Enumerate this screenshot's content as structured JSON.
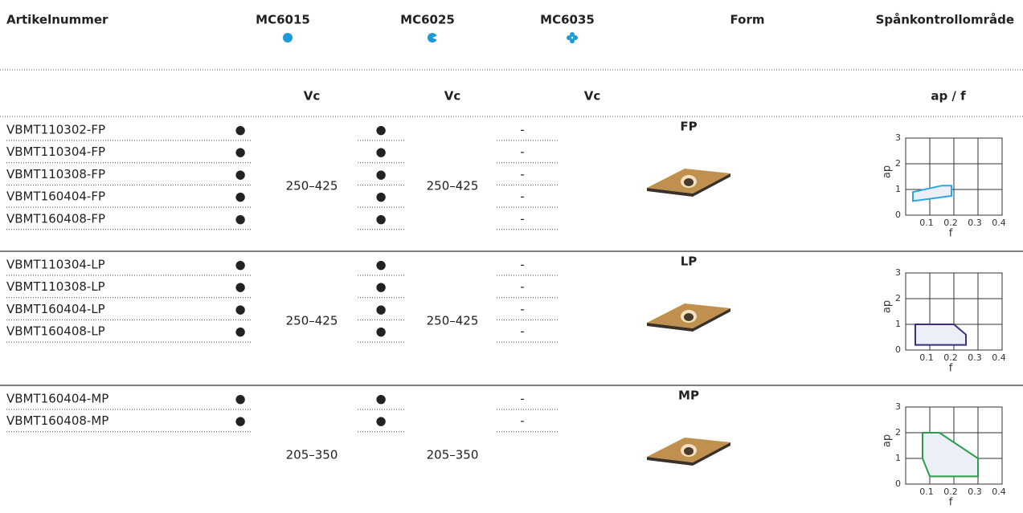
{
  "header": {
    "columns": [
      "Artikelnummer",
      "MC6015",
      "MC6025",
      "MC6035",
      "Form",
      "Spånkontrollområde"
    ]
  },
  "subheader": {
    "vc": [
      "Vc",
      "Vc",
      "Vc"
    ],
    "chart": "ap / f"
  },
  "groups": [
    {
      "form": "FP",
      "articles": [
        {
          "code": "VBMT110302-FP",
          "grades": [
            "●",
            "●",
            "-"
          ]
        },
        {
          "code": "VBMT110304-FP",
          "grades": [
            "●",
            "●",
            "-"
          ]
        },
        {
          "code": "VBMT110308-FP",
          "grades": [
            "●",
            "●",
            "-"
          ]
        },
        {
          "code": "VBMT160404-FP",
          "grades": [
            "●",
            "●",
            "-"
          ]
        },
        {
          "code": "VBMT160408-FP",
          "grades": [
            "●",
            "●",
            "-"
          ]
        }
      ],
      "vc": [
        "250–425",
        "250–425"
      ],
      "chart": {
        "ylabel": "ap",
        "xlabel": "f",
        "xlim": [
          0,
          0.4
        ],
        "ylim": [
          0,
          3
        ],
        "xticks": [
          0.1,
          0.2,
          0.3,
          0.4
        ],
        "yticks": [
          0,
          1,
          2,
          3
        ],
        "color": "#2aa7e0",
        "region": {
          "f": [
            0.03,
            0.03,
            0.15,
            0.19,
            0.19
          ],
          "ap": [
            0.55,
            0.9,
            1.15,
            1.15,
            0.75
          ]
        }
      }
    },
    {
      "form": "LP",
      "articles": [
        {
          "code": "VBMT110304-LP",
          "grades": [
            "●",
            "●",
            "-"
          ]
        },
        {
          "code": "VBMT110308-LP",
          "grades": [
            "●",
            "●",
            "-"
          ]
        },
        {
          "code": "VBMT160404-LP",
          "grades": [
            "●",
            "●",
            "-"
          ]
        },
        {
          "code": "VBMT160408-LP",
          "grades": [
            "●",
            "●",
            "-"
          ]
        }
      ],
      "vc": [
        "250–425",
        "250–425"
      ],
      "chart": {
        "ylabel": "ap",
        "xlabel": "f",
        "xlim": [
          0,
          0.4
        ],
        "ylim": [
          0,
          3
        ],
        "xticks": [
          0.1,
          0.2,
          0.3,
          0.4
        ],
        "yticks": [
          0,
          1,
          2,
          3
        ],
        "color": "#3a2f80",
        "region": {
          "f": [
            0.04,
            0.04,
            0.2,
            0.25,
            0.25
          ],
          "ap": [
            0.2,
            1.0,
            1.0,
            0.6,
            0.2
          ]
        }
      }
    },
    {
      "form": "MP",
      "articles": [
        {
          "code": "VBMT160404-MP",
          "grades": [
            "●",
            "●",
            "-"
          ]
        },
        {
          "code": "VBMT160408-MP",
          "grades": [
            "●",
            "●",
            "-"
          ]
        }
      ],
      "vc": [
        "205–350",
        "205–350"
      ],
      "chart": {
        "ylabel": "ap",
        "xlabel": "f",
        "xlim": [
          0,
          0.4
        ],
        "ylim": [
          0,
          3
        ],
        "xticks": [
          0.1,
          0.2,
          0.3,
          0.4
        ],
        "yticks": [
          0,
          1,
          2,
          3
        ],
        "color": "#2a9d4a",
        "region": {
          "f": [
            0.1,
            0.07,
            0.07,
            0.14,
            0.3,
            0.3
          ],
          "ap": [
            0.3,
            1.0,
            2.0,
            2.0,
            1.0,
            0.3
          ]
        }
      }
    }
  ]
}
